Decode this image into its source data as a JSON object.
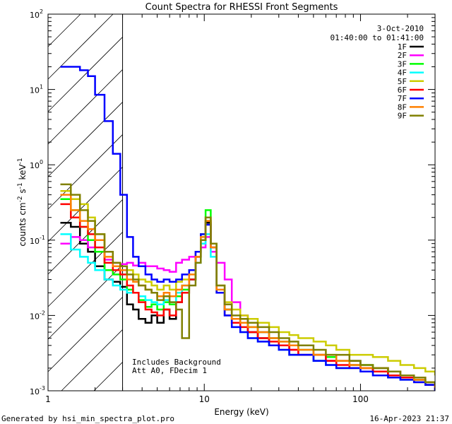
{
  "chart_data": {
    "type": "line",
    "title": "Count Spectra for RHESSI Front Segments",
    "xlabel": "Energy (keV)",
    "ylabel": "counts cm^-2 s^-1 keV^-1",
    "xscale": "log",
    "yscale": "log",
    "xlim": [
      1,
      300
    ],
    "ylim": [
      0.001,
      100
    ],
    "x_ticks": [
      1,
      10,
      100
    ],
    "x_tick_labels": [
      "1",
      "10",
      "100"
    ],
    "y_ticks": [
      0.001,
      0.01,
      0.1,
      1,
      10,
      100
    ],
    "y_tick_labels": [
      "10",
      "10",
      "10",
      "10",
      "10",
      "10"
    ],
    "y_tick_exponents": [
      "-3",
      "-2",
      "-1",
      "0",
      "1",
      "2"
    ],
    "date": "3-Oct-2010",
    "time_range": "01:40:00 to 01:41:00",
    "shaded_region_below_keV": 3,
    "annotations": [
      "Includes Background",
      "Att A0, FDecim 1"
    ],
    "footer_left": "Generated by hsi_min_spectra_plot.pro",
    "footer_right": "16-Apr-2023 21:37",
    "legend": {
      "position": "top-right"
    },
    "series": [
      {
        "name": "1F",
        "color": "#000000",
        "x": [
          1.2,
          1.4,
          1.6,
          1.8,
          2.0,
          2.3,
          2.6,
          2.9,
          3.2,
          3.5,
          3.8,
          4.2,
          4.6,
          5.0,
          5.5,
          6.0,
          6.6,
          7.2,
          8.0,
          8.8,
          9.5,
          10.2,
          11.0,
          12.0,
          13.5,
          15,
          17,
          19,
          22,
          26,
          30,
          35,
          40,
          50,
          60,
          70,
          85,
          100,
          120,
          150,
          180,
          220,
          260,
          300
        ],
        "values": [
          0.17,
          0.15,
          0.09,
          0.07,
          0.045,
          0.03,
          0.028,
          0.024,
          0.014,
          0.012,
          0.009,
          0.008,
          0.01,
          0.008,
          0.012,
          0.009,
          0.015,
          0.02,
          0.03,
          0.06,
          0.1,
          0.17,
          0.09,
          0.02,
          0.012,
          0.008,
          0.009,
          0.006,
          0.005,
          0.004,
          0.004,
          0.003,
          0.003,
          0.0025,
          0.0025,
          0.002,
          0.0025,
          0.002,
          0.0018,
          0.0015,
          0.0015,
          0.0014,
          0.0012,
          0.001
        ]
      },
      {
        "name": "2F",
        "color": "#ff00ff",
        "x": [
          1.2,
          1.4,
          1.6,
          1.8,
          2.0,
          2.3,
          2.6,
          2.9,
          3.2,
          3.5,
          3.8,
          4.2,
          4.6,
          5.0,
          5.5,
          6.0,
          6.6,
          7.2,
          8.0,
          8.8,
          9.5,
          10.2,
          11.0,
          12.0,
          13.5,
          15,
          17,
          19,
          22,
          26,
          30,
          35,
          40,
          50,
          60,
          70,
          85,
          100,
          120,
          150,
          180,
          220,
          260,
          300
        ],
        "values": [
          0.09,
          0.11,
          0.1,
          0.08,
          0.07,
          0.055,
          0.05,
          0.048,
          0.05,
          0.046,
          0.05,
          0.045,
          0.045,
          0.042,
          0.04,
          0.038,
          0.05,
          0.055,
          0.06,
          0.07,
          0.08,
          0.11,
          0.07,
          0.05,
          0.03,
          0.015,
          0.01,
          0.008,
          0.006,
          0.005,
          0.004,
          0.0035,
          0.003,
          0.003,
          0.0025,
          0.0025,
          0.0022,
          0.002,
          0.002,
          0.0018,
          0.0016,
          0.0015,
          0.0013,
          0.0012
        ]
      },
      {
        "name": "3F",
        "color": "#00ff00",
        "x": [
          1.2,
          1.4,
          1.6,
          1.8,
          2.0,
          2.3,
          2.6,
          2.9,
          3.2,
          3.5,
          3.8,
          4.2,
          4.6,
          5.0,
          5.5,
          6.0,
          6.6,
          7.2,
          8.0,
          8.8,
          9.5,
          10.2,
          11.0,
          12.0,
          13.5,
          15,
          17,
          19,
          22,
          26,
          30,
          35,
          40,
          50,
          60,
          70,
          85,
          100,
          120,
          150,
          180,
          220,
          260,
          300
        ],
        "values": [
          0.35,
          0.25,
          0.15,
          0.1,
          0.07,
          0.04,
          0.035,
          0.03,
          0.022,
          0.02,
          0.016,
          0.013,
          0.014,
          0.012,
          0.015,
          0.014,
          0.018,
          0.022,
          0.03,
          0.06,
          0.12,
          0.25,
          0.09,
          0.02,
          0.012,
          0.009,
          0.008,
          0.007,
          0.006,
          0.005,
          0.0045,
          0.004,
          0.0035,
          0.003,
          0.0028,
          0.0025,
          0.0022,
          0.0022,
          0.002,
          0.0018,
          0.0016,
          0.0014,
          0.0013,
          0.0011
        ]
      },
      {
        "name": "4F",
        "color": "#00ffff",
        "x": [
          1.2,
          1.4,
          1.6,
          1.8,
          2.0,
          2.3,
          2.6,
          2.9,
          3.2,
          3.5,
          3.8,
          4.2,
          4.6,
          5.0,
          5.5,
          6.0,
          6.6,
          7.2,
          8.0,
          8.8,
          9.5,
          10.2,
          11.0,
          12.0,
          13.5,
          15,
          17,
          19,
          22,
          26,
          30,
          35,
          40,
          50,
          60,
          70,
          85,
          100,
          120,
          150,
          180,
          220,
          260,
          300
        ],
        "values": [
          0.12,
          0.075,
          0.06,
          0.05,
          0.04,
          0.03,
          0.025,
          0.022,
          0.02,
          0.02,
          0.018,
          0.016,
          0.015,
          0.014,
          0.016,
          0.015,
          0.02,
          0.025,
          0.03,
          0.05,
          0.09,
          0.12,
          0.06,
          0.02,
          0.01,
          0.007,
          0.006,
          0.005,
          0.0045,
          0.004,
          0.0035,
          0.003,
          0.003,
          0.0025,
          0.0022,
          0.002,
          0.002,
          0.0018,
          0.0016,
          0.0015,
          0.0014,
          0.0013,
          0.0012,
          0.001
        ]
      },
      {
        "name": "5F",
        "color": "#cccc00",
        "x": [
          1.2,
          1.4,
          1.6,
          1.8,
          2.0,
          2.3,
          2.6,
          2.9,
          3.2,
          3.5,
          3.8,
          4.2,
          4.6,
          5.0,
          5.5,
          6.0,
          6.6,
          7.2,
          8.0,
          8.8,
          9.5,
          10.2,
          11.0,
          12.0,
          13.5,
          15,
          17,
          19,
          22,
          26,
          30,
          35,
          40,
          50,
          60,
          70,
          85,
          100,
          120,
          150,
          180,
          220,
          260,
          300
        ],
        "values": [
          0.45,
          0.35,
          0.3,
          0.2,
          0.12,
          0.07,
          0.05,
          0.045,
          0.04,
          0.035,
          0.03,
          0.028,
          0.025,
          0.022,
          0.025,
          0.022,
          0.028,
          0.03,
          0.04,
          0.07,
          0.12,
          0.2,
          0.09,
          0.025,
          0.015,
          0.012,
          0.01,
          0.009,
          0.008,
          0.007,
          0.006,
          0.0055,
          0.005,
          0.0045,
          0.004,
          0.0035,
          0.003,
          0.003,
          0.0028,
          0.0025,
          0.0022,
          0.002,
          0.0018,
          0.0016
        ]
      },
      {
        "name": "6F",
        "color": "#ff0000",
        "x": [
          1.2,
          1.4,
          1.6,
          1.8,
          2.0,
          2.3,
          2.6,
          2.9,
          3.2,
          3.5,
          3.8,
          4.2,
          4.6,
          5.0,
          5.5,
          6.0,
          6.6,
          7.2,
          8.0,
          8.8,
          9.5,
          10.2,
          11.0,
          12.0,
          13.5,
          15,
          17,
          19,
          22,
          26,
          30,
          35,
          40,
          50,
          60,
          70,
          85,
          100,
          120,
          150,
          180,
          220,
          260,
          300
        ],
        "values": [
          0.3,
          0.2,
          0.15,
          0.12,
          0.08,
          0.05,
          0.04,
          0.035,
          0.025,
          0.02,
          0.015,
          0.012,
          0.011,
          0.01,
          0.012,
          0.01,
          0.015,
          0.02,
          0.03,
          0.06,
          0.1,
          0.18,
          0.08,
          0.02,
          0.01,
          0.008,
          0.007,
          0.006,
          0.005,
          0.0045,
          0.004,
          0.0035,
          0.003,
          0.003,
          0.0025,
          0.0022,
          0.002,
          0.002,
          0.0018,
          0.0016,
          0.0015,
          0.0013,
          0.0012,
          0.001
        ]
      },
      {
        "name": "7F",
        "color": "#0000ff",
        "x": [
          1.2,
          1.4,
          1.6,
          1.8,
          2.0,
          2.3,
          2.6,
          2.9,
          3.2,
          3.5,
          3.8,
          4.2,
          4.6,
          5.0,
          5.5,
          6.0,
          6.6,
          7.2,
          8.0,
          8.8,
          9.5,
          10.2,
          11.0,
          12.0,
          13.5,
          15,
          17,
          19,
          22,
          26,
          30,
          35,
          40,
          50,
          60,
          70,
          85,
          100,
          120,
          150,
          180,
          220,
          260,
          300
        ],
        "values": [
          20,
          20,
          18,
          15,
          8.5,
          3.8,
          1.4,
          0.4,
          0.11,
          0.06,
          0.045,
          0.035,
          0.03,
          0.028,
          0.03,
          0.028,
          0.03,
          0.035,
          0.04,
          0.07,
          0.12,
          0.16,
          0.08,
          0.02,
          0.01,
          0.007,
          0.006,
          0.005,
          0.0045,
          0.004,
          0.0035,
          0.003,
          0.003,
          0.0025,
          0.0022,
          0.002,
          0.002,
          0.0018,
          0.0016,
          0.0015,
          0.0014,
          0.0013,
          0.0012,
          0.001
        ]
      },
      {
        "name": "8F",
        "color": "#ff8000",
        "x": [
          1.2,
          1.4,
          1.6,
          1.8,
          2.0,
          2.3,
          2.6,
          2.9,
          3.2,
          3.5,
          3.8,
          4.2,
          4.6,
          5.0,
          5.5,
          6.0,
          6.6,
          7.2,
          8.0,
          8.8,
          9.5,
          10.2,
          11.0,
          12.0,
          13.5,
          15,
          17,
          19,
          22,
          26,
          30,
          35,
          40,
          50,
          60,
          70,
          85,
          100,
          120,
          150,
          180,
          220,
          260,
          300
        ],
        "values": [
          0.4,
          0.25,
          0.18,
          0.14,
          0.1,
          0.06,
          0.045,
          0.04,
          0.03,
          0.028,
          0.025,
          0.022,
          0.02,
          0.018,
          0.02,
          0.018,
          0.022,
          0.025,
          0.035,
          0.06,
          0.11,
          0.18,
          0.08,
          0.022,
          0.012,
          0.009,
          0.008,
          0.007,
          0.006,
          0.005,
          0.0045,
          0.004,
          0.0035,
          0.003,
          0.003,
          0.0025,
          0.0022,
          0.002,
          0.002,
          0.0018,
          0.0016,
          0.0014,
          0.0013,
          0.0011
        ]
      },
      {
        "name": "9F",
        "color": "#808000",
        "x": [
          1.2,
          1.4,
          1.6,
          1.8,
          2.0,
          2.3,
          2.6,
          2.9,
          3.2,
          3.5,
          3.8,
          4.2,
          4.6,
          5.0,
          5.5,
          6.0,
          6.6,
          7.2,
          8.0,
          8.8,
          9.5,
          10.2,
          11.0,
          12.0,
          13.5,
          15,
          17,
          19,
          22,
          26,
          30,
          35,
          40,
          50,
          60,
          70,
          85,
          100,
          120,
          150,
          180,
          220,
          260,
          300
        ],
        "values": [
          0.55,
          0.4,
          0.25,
          0.18,
          0.12,
          0.07,
          0.05,
          0.045,
          0.035,
          0.03,
          0.025,
          0.022,
          0.02,
          0.016,
          0.018,
          0.015,
          0.012,
          0.005,
          0.025,
          0.05,
          0.1,
          0.2,
          0.09,
          0.025,
          0.014,
          0.01,
          0.009,
          0.008,
          0.007,
          0.006,
          0.005,
          0.0045,
          0.004,
          0.0035,
          0.003,
          0.003,
          0.0025,
          0.0022,
          0.002,
          0.0018,
          0.0016,
          0.0015,
          0.0013,
          0.0012
        ]
      }
    ]
  }
}
